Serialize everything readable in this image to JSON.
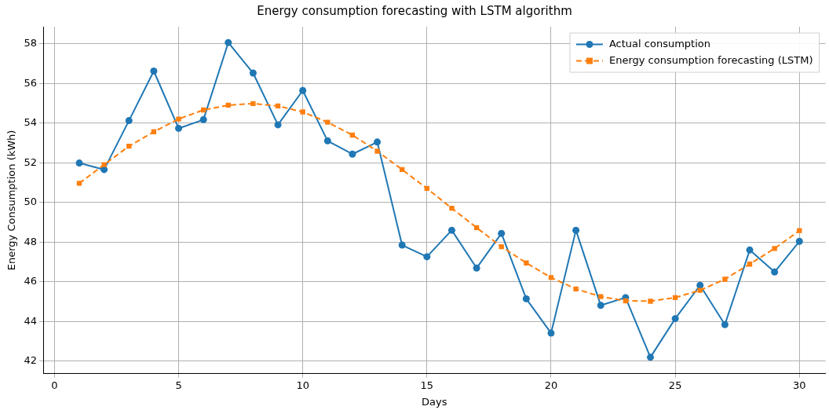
{
  "chart_data": {
    "type": "line",
    "title": "Energy consumption forecasting with LSTM algorithm",
    "xlabel": "Days",
    "ylabel": "Energy Consumption (kWh)",
    "x": [
      1,
      2,
      3,
      4,
      5,
      6,
      7,
      8,
      9,
      10,
      11,
      12,
      13,
      14,
      15,
      16,
      17,
      18,
      19,
      20,
      21,
      22,
      23,
      24,
      25,
      26,
      27,
      28,
      29,
      30
    ],
    "series": [
      {
        "name": "Actual consumption",
        "color": "#1f77b4",
        "marker": "circle",
        "line_style": "solid",
        "values": [
          51.99,
          51.66,
          54.13,
          56.63,
          53.74,
          54.18,
          58.07,
          56.53,
          53.92,
          55.65,
          53.11,
          52.44,
          53.05,
          47.85,
          47.26,
          48.6,
          46.69,
          48.44,
          45.14,
          43.41,
          48.6,
          44.81,
          45.2,
          42.19,
          44.14,
          45.82,
          43.84,
          47.6,
          46.49,
          48.04
        ]
      },
      {
        "name": "Energy consumption forecasting (LSTM)",
        "color": "#ff7f0e",
        "marker": "square",
        "line_style": "dashed",
        "values": [
          50.97,
          51.91,
          52.84,
          53.57,
          54.21,
          54.67,
          54.91,
          54.99,
          54.87,
          54.57,
          54.05,
          53.4,
          52.59,
          51.66,
          50.71,
          49.71,
          48.73,
          47.77,
          46.95,
          46.21,
          45.64,
          45.25,
          45.04,
          45.02,
          45.2,
          45.57,
          46.13,
          46.89,
          47.68,
          48.58
        ]
      }
    ],
    "xlim": [
      -0.45,
      31.05
    ],
    "xticks": [
      0,
      5,
      10,
      15,
      20,
      25,
      30
    ],
    "ylim": [
      41.36,
      58.87
    ],
    "yticks": [
      42,
      44,
      46,
      48,
      50,
      52,
      54,
      56,
      58
    ],
    "grid": true,
    "legend": "top right"
  }
}
